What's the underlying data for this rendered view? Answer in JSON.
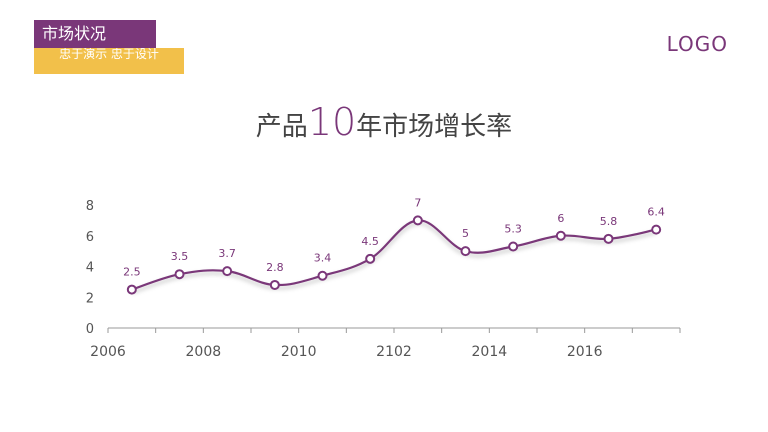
{
  "header": {
    "section_title": "市场状况",
    "tagline": "忠于演示  忠于设计",
    "logo_text": "LOGO"
  },
  "headline": {
    "prefix": "产品",
    "number": "10",
    "suffix": "年市场增长率"
  },
  "colors": {
    "primary": "#7a3779",
    "accent": "#f2c04a"
  },
  "chart_data": {
    "type": "line",
    "x": [
      "2006",
      "2007",
      "2008",
      "2009",
      "2010",
      "2011",
      "2102",
      "2013",
      "2014",
      "2015",
      "2016",
      "2017"
    ],
    "x_tick_labels": [
      "2006",
      "",
      "2008",
      "",
      "2010",
      "",
      "2102",
      "",
      "2014",
      "",
      "2016",
      ""
    ],
    "values": [
      2.5,
      3.5,
      3.7,
      2.8,
      3.4,
      4.5,
      7,
      5,
      5.3,
      6,
      5.8,
      6.4
    ],
    "data_labels": [
      "2.5",
      "3.5",
      "3.7",
      "2.8",
      "3.4",
      "4.5",
      "7",
      "5",
      "5.3",
      "6",
      "5.8",
      "6.4"
    ],
    "y_ticks": [
      "0",
      "2",
      "4",
      "6",
      "8"
    ],
    "ylim": [
      0,
      8
    ],
    "grid": false,
    "smooth": true,
    "title": "",
    "xlabel": "",
    "ylabel": ""
  }
}
